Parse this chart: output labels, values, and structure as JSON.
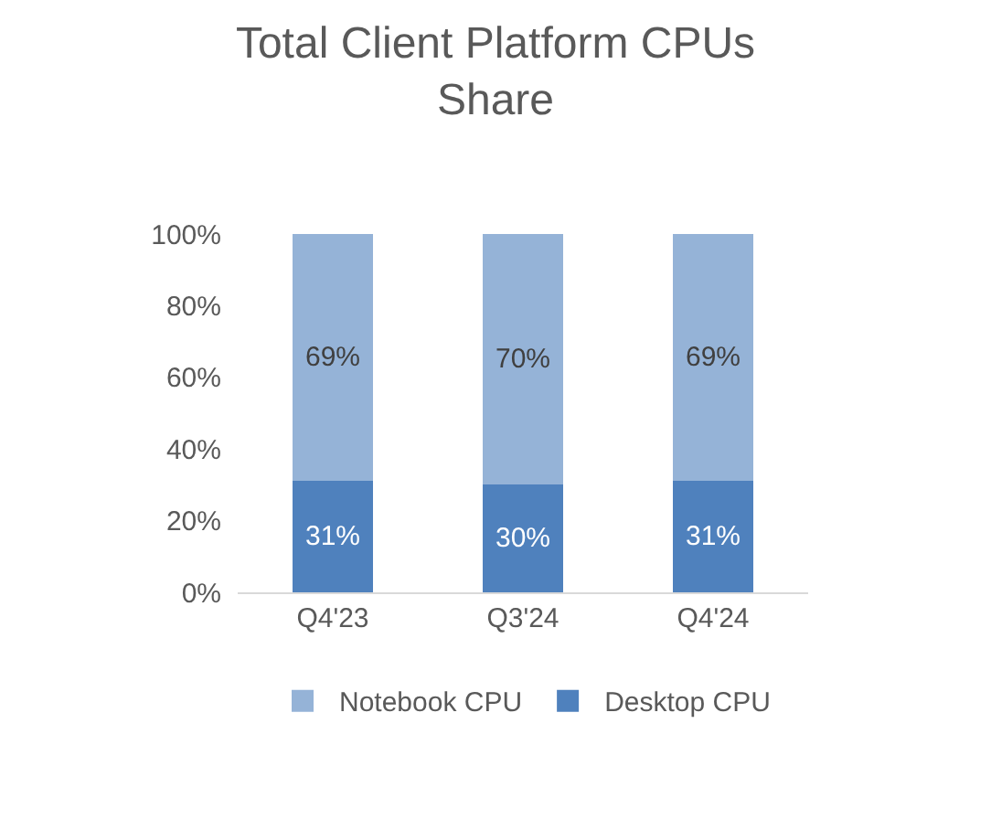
{
  "chart_data": {
    "type": "bar",
    "title": "Total Client Platform CPUs Share",
    "categories": [
      "Q4'23",
      "Q3'24",
      "Q4'24"
    ],
    "stacked": true,
    "series": [
      {
        "name": "Desktop CPU",
        "color": "#4f81bd",
        "values": [
          31,
          30,
          31
        ],
        "value_labels": [
          "31%",
          "30%",
          "31%"
        ]
      },
      {
        "name": "Notebook CPU",
        "color": "#95b3d7",
        "values": [
          69,
          70,
          69
        ],
        "value_labels": [
          "69%",
          "70%",
          "69%"
        ]
      }
    ],
    "ylim": [
      0,
      100
    ],
    "yticks": [
      {
        "value": 0,
        "label": "0%"
      },
      {
        "value": 20,
        "label": "20%"
      },
      {
        "value": 40,
        "label": "40%"
      },
      {
        "value": 60,
        "label": "60%"
      },
      {
        "value": 80,
        "label": "80%"
      },
      {
        "value": 100,
        "label": "100%"
      }
    ],
    "grid": false,
    "legend": "bottom"
  }
}
